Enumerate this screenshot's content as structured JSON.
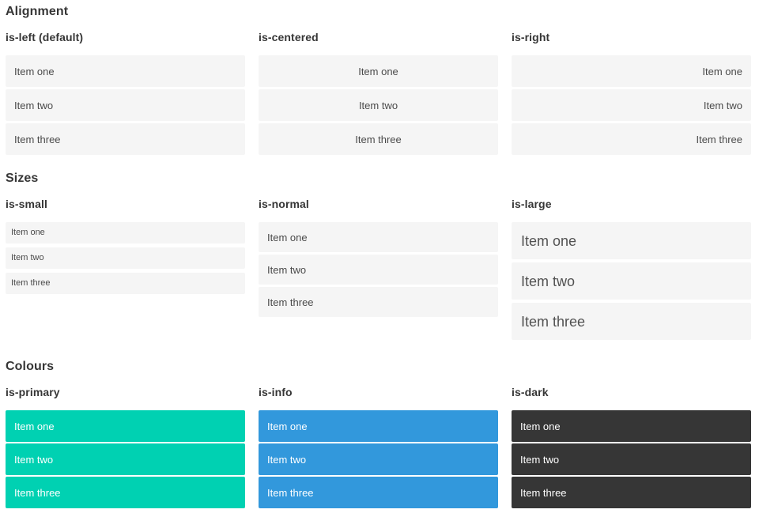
{
  "sections": [
    {
      "title": "Alignment",
      "columns": [
        {
          "label": "is-left (default)",
          "items": [
            "Item one",
            "Item two",
            "Item three"
          ]
        },
        {
          "label": "is-centered",
          "items": [
            "Item one",
            "Item two",
            "Item three"
          ]
        },
        {
          "label": "is-right",
          "items": [
            "Item one",
            "Item two",
            "Item three"
          ]
        }
      ]
    },
    {
      "title": "Sizes",
      "columns": [
        {
          "label": "is-small",
          "items": [
            "Item one",
            "Item two",
            "Item three"
          ]
        },
        {
          "label": "is-normal",
          "items": [
            "Item one",
            "Item two",
            "Item three"
          ]
        },
        {
          "label": "is-large",
          "items": [
            "Item one",
            "Item two",
            "Item three"
          ]
        }
      ]
    },
    {
      "title": "Colours",
      "columns": [
        {
          "label": "is-primary",
          "items": [
            "Item one",
            "Item two",
            "Item three"
          ]
        },
        {
          "label": "is-info",
          "items": [
            "Item one",
            "Item two",
            "Item three"
          ]
        },
        {
          "label": "is-dark",
          "items": [
            "Item one",
            "Item two",
            "Item three"
          ]
        }
      ]
    }
  ],
  "colors": {
    "primary": "#00d1b2",
    "info": "#3298dc",
    "dark": "#363636",
    "item_bg": "#f5f5f5",
    "item_text": "#4a4a4a",
    "colored_item_text": "#ffffff",
    "heading_text": "#363636"
  }
}
